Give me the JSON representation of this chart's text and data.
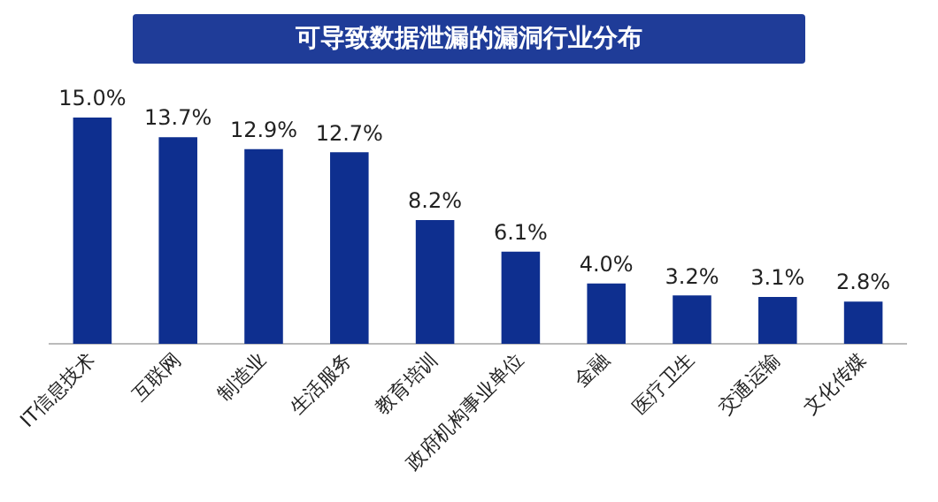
{
  "chart_data": {
    "type": "bar",
    "title": "可导致数据泄漏的漏洞行业分布",
    "categories": [
      "IT信息技术",
      "互联网",
      "制造业",
      "生活服务",
      "教育培训",
      "政府机构事业单位",
      "金融",
      "医疗卫生",
      "交通运输",
      "文化传媒"
    ],
    "values": [
      15.0,
      13.7,
      12.9,
      12.7,
      8.2,
      6.1,
      4.0,
      3.2,
      3.1,
      2.8
    ],
    "value_labels": [
      "15.0%",
      "13.7%",
      "12.9%",
      "12.7%",
      "8.2%",
      "6.1%",
      "4.0%",
      "3.2%",
      "3.1%",
      "2.8%"
    ],
    "color": "#0e2f8f",
    "grid": false,
    "legend": false
  }
}
